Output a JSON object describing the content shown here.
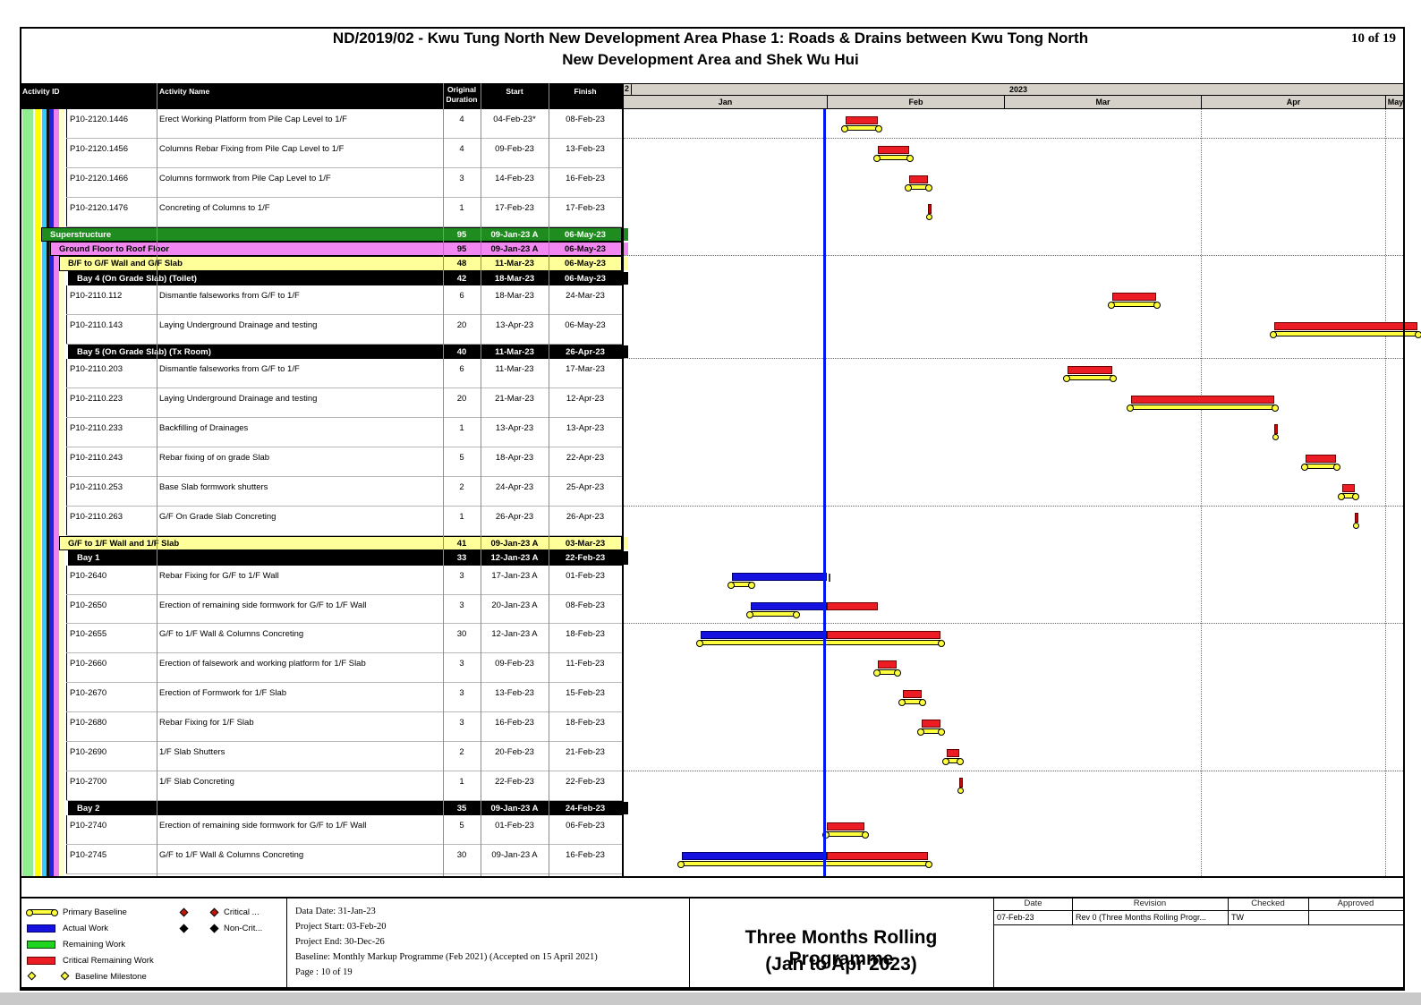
{
  "page": {
    "title_line1": "ND/2019/02 - Kwu Tung North New Development Area Phase 1: Roads & Drains between Kwu Tong North",
    "title_line2": "New Development Area and Shek Wu Hui",
    "page_number": "10 of 19"
  },
  "table": {
    "headers": {
      "activity_id": "Activity ID",
      "activity_name": "Activity Name",
      "duration_l1": "Original",
      "duration_l2": "Duration",
      "start": "Start",
      "finish": "Finish"
    }
  },
  "timeline": {
    "year_overflow": "2",
    "year": "2023",
    "months": [
      "Jan",
      "Feb",
      "Mar",
      "Apr",
      "May"
    ]
  },
  "rows": [
    {
      "t": "a",
      "id": "P10-2120.1446",
      "name": "Erect Working Platform from Pile Cap Level to 1/F",
      "dur": "4",
      "start": "04-Feb-23*",
      "finish": "08-Feb-23",
      "bars": {
        "red": [
          "2-4",
          "2-8"
        ],
        "base": [
          "2-4",
          "2-8"
        ]
      }
    },
    {
      "t": "a",
      "id": "P10-2120.1456",
      "name": "Columns Rebar Fixing from Pile Cap Level to 1/F",
      "dur": "4",
      "start": "09-Feb-23",
      "finish": "13-Feb-23",
      "bars": {
        "red": [
          "2-9",
          "2-13"
        ],
        "base": [
          "2-9",
          "2-13"
        ]
      }
    },
    {
      "t": "a",
      "id": "P10-2120.1466",
      "name": "Columns formwork from Pile Cap Level to 1/F",
      "dur": "3",
      "start": "14-Feb-23",
      "finish": "16-Feb-23",
      "bars": {
        "red": [
          "2-14",
          "2-16"
        ],
        "base": [
          "2-14",
          "2-16"
        ]
      }
    },
    {
      "t": "a",
      "id": "P10-2120.1476",
      "name": "Concreting of Columns to 1/F",
      "dur": "1",
      "start": "17-Feb-23",
      "finish": "17-Feb-23",
      "bars": {
        "tick": "2-17"
      }
    },
    {
      "t": "s",
      "lvl": 0,
      "c": "g",
      "name": "Superstructure",
      "dur": "95",
      "start": "09-Jan-23 A",
      "finish": "06-May-23"
    },
    {
      "t": "s",
      "lvl": 1,
      "c": "p",
      "name": "Ground Floor to Roof Floor",
      "dur": "95",
      "start": "09-Jan-23 A",
      "finish": "06-May-23"
    },
    {
      "t": "s",
      "lvl": 2,
      "c": "y",
      "name": "B/F to G/F Wall and G/F Slab",
      "dur": "48",
      "start": "11-Mar-23",
      "finish": "06-May-23"
    },
    {
      "t": "s",
      "lvl": 3,
      "c": "k",
      "name": "Bay 4 (On Grade Slab) (Toilet)",
      "dur": "42",
      "start": "18-Mar-23",
      "finish": "06-May-23"
    },
    {
      "t": "a",
      "id": "P10-2110.112",
      "name": "Dismantle falseworks from G/F to 1/F",
      "dur": "6",
      "start": "18-Mar-23",
      "finish": "24-Mar-23",
      "bars": {
        "red": [
          "3-18",
          "3-24"
        ],
        "base": [
          "3-18",
          "3-24"
        ]
      }
    },
    {
      "t": "a",
      "id": "P10-2110.143",
      "name": "Laying Underground Drainage and testing",
      "dur": "20",
      "start": "13-Apr-23",
      "finish": "06-May-23",
      "bars": {
        "red": [
          "4-13",
          "5-6"
        ],
        "base": [
          "4-13",
          "5-6"
        ]
      }
    },
    {
      "t": "s",
      "lvl": 3,
      "c": "k",
      "name": "Bay 5 (On Grade Slab) (Tx Room)",
      "dur": "40",
      "start": "11-Mar-23",
      "finish": "26-Apr-23"
    },
    {
      "t": "a",
      "id": "P10-2110.203",
      "name": "Dismantle falseworks from G/F to 1/F",
      "dur": "6",
      "start": "11-Mar-23",
      "finish": "17-Mar-23",
      "bars": {
        "red": [
          "3-11",
          "3-17"
        ],
        "base": [
          "3-11",
          "3-17"
        ]
      }
    },
    {
      "t": "a",
      "id": "P10-2110.223",
      "name": "Laying Underground Drainage and testing",
      "dur": "20",
      "start": "21-Mar-23",
      "finish": "12-Apr-23",
      "bars": {
        "red": [
          "3-21",
          "4-12"
        ],
        "base": [
          "3-21",
          "4-12"
        ]
      }
    },
    {
      "t": "a",
      "id": "P10-2110.233",
      "name": "Backfilling of Drainages",
      "dur": "1",
      "start": "13-Apr-23",
      "finish": "13-Apr-23",
      "bars": {
        "tick": "4-13"
      }
    },
    {
      "t": "a",
      "id": "P10-2110.243",
      "name": "Rebar fixing of on grade Slab",
      "dur": "5",
      "start": "18-Apr-23",
      "finish": "22-Apr-23",
      "bars": {
        "red": [
          "4-18",
          "4-22"
        ],
        "base": [
          "4-18",
          "4-22"
        ]
      }
    },
    {
      "t": "a",
      "id": "P10-2110.253",
      "name": "Base Slab formwork shutters",
      "dur": "2",
      "start": "24-Apr-23",
      "finish": "25-Apr-23",
      "bars": {
        "red": [
          "4-24",
          "4-25"
        ],
        "base": [
          "4-24",
          "4-25"
        ]
      }
    },
    {
      "t": "a",
      "id": "P10-2110.263",
      "name": "G/F On Grade Slab Concreting",
      "dur": "1",
      "start": "26-Apr-23",
      "finish": "26-Apr-23",
      "bars": {
        "tick": "4-26"
      }
    },
    {
      "t": "s",
      "lvl": 2,
      "c": "y",
      "name": "G/F to 1/F Wall and 1/F Slab",
      "dur": "41",
      "start": "09-Jan-23 A",
      "finish": "03-Mar-23"
    },
    {
      "t": "s",
      "lvl": 3,
      "c": "k",
      "name": "Bay 1",
      "dur": "33",
      "start": "12-Jan-23 A",
      "finish": "22-Feb-23"
    },
    {
      "t": "a",
      "id": "P10-2640",
      "name": "Rebar Fixing for G/F to 1/F Wall",
      "dur": "3",
      "start": "17-Jan-23 A",
      "finish": "01-Feb-23",
      "bars": {
        "blue": [
          "1-17",
          "1-31"
        ],
        "base": [
          "1-17",
          "1-19"
        ],
        "gtick": "2-1"
      }
    },
    {
      "t": "a",
      "id": "P10-2650",
      "name": "Erection of remaining side formwork for G/F to 1/F Wall",
      "dur": "3",
      "start": "20-Jan-23 A",
      "finish": "08-Feb-23",
      "bars": {
        "blue": [
          "1-20",
          "1-31"
        ],
        "red": [
          "2-1",
          "2-8"
        ],
        "base": [
          "1-20",
          "1-26"
        ]
      }
    },
    {
      "t": "a",
      "id": "P10-2655",
      "name": "G/F to 1/F Wall & Columns Concreting",
      "dur": "30",
      "start": "12-Jan-23 A",
      "finish": "18-Feb-23",
      "bars": {
        "blue": [
          "1-12",
          "1-31"
        ],
        "red": [
          "2-1",
          "2-18"
        ],
        "base": [
          "1-12",
          "2-18"
        ]
      }
    },
    {
      "t": "a",
      "id": "P10-2660",
      "name": "Erection of falsework and working platform for 1/F Slab",
      "dur": "3",
      "start": "09-Feb-23",
      "finish": "11-Feb-23",
      "bars": {
        "red": [
          "2-9",
          "2-11"
        ],
        "base": [
          "2-9",
          "2-11"
        ]
      }
    },
    {
      "t": "a",
      "id": "P10-2670",
      "name": "Erection of Formwork for 1/F Slab",
      "dur": "3",
      "start": "13-Feb-23",
      "finish": "15-Feb-23",
      "bars": {
        "red": [
          "2-13",
          "2-15"
        ],
        "base": [
          "2-13",
          "2-15"
        ]
      }
    },
    {
      "t": "a",
      "id": "P10-2680",
      "name": "Rebar Fixing for 1/F Slab",
      "dur": "3",
      "start": "16-Feb-23",
      "finish": "18-Feb-23",
      "bars": {
        "red": [
          "2-16",
          "2-18"
        ],
        "base": [
          "2-16",
          "2-18"
        ]
      }
    },
    {
      "t": "a",
      "id": "P10-2690",
      "name": "1/F Slab Shutters",
      "dur": "2",
      "start": "20-Feb-23",
      "finish": "21-Feb-23",
      "bars": {
        "red": [
          "2-20",
          "2-21"
        ],
        "base": [
          "2-20",
          "2-21"
        ]
      }
    },
    {
      "t": "a",
      "id": "P10-2700",
      "name": "1/F Slab Concreting",
      "dur": "1",
      "start": "22-Feb-23",
      "finish": "22-Feb-23",
      "bars": {
        "tick": "2-22"
      }
    },
    {
      "t": "s",
      "lvl": 3,
      "c": "k",
      "name": "Bay 2",
      "dur": "35",
      "start": "09-Jan-23 A",
      "finish": "24-Feb-23"
    },
    {
      "t": "a",
      "id": "P10-2740",
      "name": "Erection of remaining side formwork for G/F to 1/F Wall",
      "dur": "5",
      "start": "01-Feb-23",
      "finish": "06-Feb-23",
      "bars": {
        "red": [
          "2-1",
          "2-6"
        ],
        "base": [
          "2-1",
          "2-6"
        ]
      }
    },
    {
      "t": "a",
      "id": "P10-2745",
      "name": "G/F to 1/F Wall & Columns Concreting",
      "dur": "30",
      "start": "09-Jan-23 A",
      "finish": "16-Feb-23",
      "bars": {
        "blue": [
          "1-9",
          "1-31"
        ],
        "red": [
          "2-1",
          "2-16"
        ],
        "base": [
          "1-9",
          "2-16"
        ]
      }
    }
  ],
  "legend": {
    "left": [
      {
        "symbol": "primary-baseline-bar",
        "label": "Primary Baseline"
      },
      {
        "symbol": "actual-work-bar",
        "label": "Actual Work"
      },
      {
        "symbol": "remaining-work-bar",
        "label": "Remaining Work"
      },
      {
        "symbol": "critical-remaining-work-bar",
        "label": "Critical Remaining Work"
      },
      {
        "symbol": "baseline-milestone-diamond",
        "label": "Baseline Milestone"
      }
    ],
    "right": [
      {
        "symbol": "critical-diamond",
        "label": "Critical ..."
      },
      {
        "symbol": "non-critical-diamond",
        "label": "Non-Crit..."
      }
    ]
  },
  "info": {
    "lines": [
      "Data Date: 31-Jan-23",
      "Project Start: 03-Feb-20",
      "Project End: 30-Dec-26",
      "Baseline: Monthly Markup Programme (Feb 2021) (Accepted on 15 April 2021)",
      "Page : 10 of 19"
    ]
  },
  "titleblock": {
    "line1": "Three Months Rolling  Programme",
    "line2": "(Jan to  Apr 2023)"
  },
  "revision": {
    "headers": [
      "Date",
      "Revision",
      "Checked",
      "Approved"
    ],
    "row": [
      "07-Feb-23",
      "Rev 0 (Three Months Rolling Progr...",
      "TW",
      ""
    ]
  },
  "colors": {
    "actual_work": "#1512E0",
    "critical_remaining": "#EC1C24",
    "remaining_work": "#1FD41F",
    "baseline": "#FFFF3D",
    "data_date_line": "#0018EE",
    "summary_green": "#1E8C1E",
    "summary_pink": "#F287F2",
    "summary_yellow": "#FFFF99",
    "summary_black": "#000000"
  },
  "chart_data": {
    "type": "bar",
    "subtype": "gantt",
    "title": "Three Months Rolling Programme (Jan to Apr 2023)",
    "data_date": "31-Jan-23",
    "timeline": {
      "year": "2023",
      "months": [
        "Jan",
        "Feb",
        "Mar",
        "Apr",
        "May"
      ]
    },
    "bars": [
      [
        "P10-2120.1446",
        "04-Feb-23",
        "08-Feb-23",
        "critical-remaining"
      ],
      [
        "P10-2120.1456",
        "09-Feb-23",
        "13-Feb-23",
        "critical-remaining"
      ],
      [
        "P10-2120.1466",
        "14-Feb-23",
        "16-Feb-23",
        "critical-remaining"
      ],
      [
        "P10-2120.1476",
        "17-Feb-23",
        "17-Feb-23",
        "critical-remaining"
      ],
      [
        "P10-2110.112",
        "18-Mar-23",
        "24-Mar-23",
        "critical-remaining"
      ],
      [
        "P10-2110.143",
        "13-Apr-23",
        "06-May-23",
        "critical-remaining"
      ],
      [
        "P10-2110.203",
        "11-Mar-23",
        "17-Mar-23",
        "critical-remaining"
      ],
      [
        "P10-2110.223",
        "21-Mar-23",
        "12-Apr-23",
        "critical-remaining"
      ],
      [
        "P10-2110.233",
        "13-Apr-23",
        "13-Apr-23",
        "critical-remaining"
      ],
      [
        "P10-2110.243",
        "18-Apr-23",
        "22-Apr-23",
        "critical-remaining"
      ],
      [
        "P10-2110.253",
        "24-Apr-23",
        "25-Apr-23",
        "critical-remaining"
      ],
      [
        "P10-2110.263",
        "26-Apr-23",
        "26-Apr-23",
        "critical-remaining"
      ],
      [
        "P10-2640",
        "17-Jan-23",
        "01-Feb-23",
        "actual-then-remaining"
      ],
      [
        "P10-2650",
        "20-Jan-23",
        "08-Feb-23",
        "actual-then-critical"
      ],
      [
        "P10-2655",
        "12-Jan-23",
        "18-Feb-23",
        "actual-then-critical"
      ],
      [
        "P10-2660",
        "09-Feb-23",
        "11-Feb-23",
        "critical-remaining"
      ],
      [
        "P10-2670",
        "13-Feb-23",
        "15-Feb-23",
        "critical-remaining"
      ],
      [
        "P10-2680",
        "16-Feb-23",
        "18-Feb-23",
        "critical-remaining"
      ],
      [
        "P10-2690",
        "20-Feb-23",
        "21-Feb-23",
        "critical-remaining"
      ],
      [
        "P10-2700",
        "22-Feb-23",
        "22-Feb-23",
        "critical-remaining"
      ],
      [
        "P10-2740",
        "01-Feb-23",
        "06-Feb-23",
        "critical-remaining"
      ],
      [
        "P10-2745",
        "09-Jan-23",
        "16-Feb-23",
        "actual-then-critical"
      ]
    ]
  }
}
